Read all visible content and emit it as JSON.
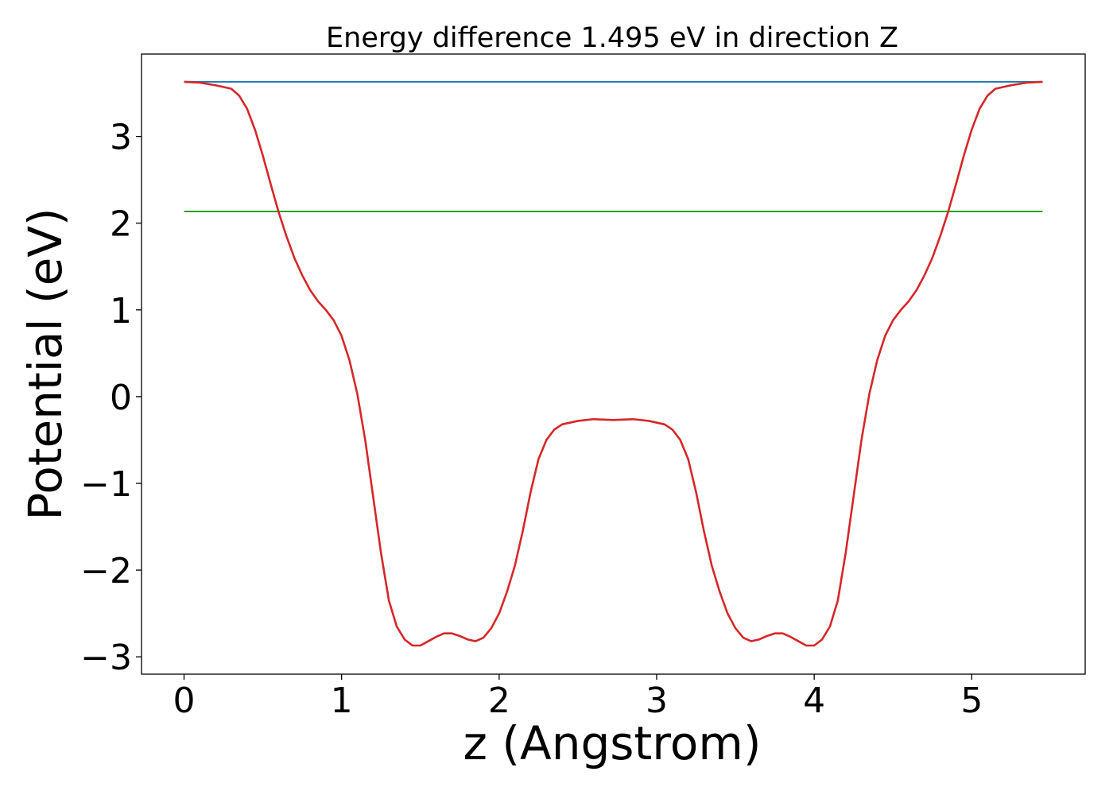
{
  "chart_data": {
    "type": "line",
    "title": "Energy difference 1.495 eV in direction Z",
    "xlabel": "z (Angstrom)",
    "ylabel": "Potential (eV)",
    "xlim": [
      -0.27,
      5.72
    ],
    "ylim": [
      -3.2,
      3.95
    ],
    "xticks": [
      0,
      1,
      2,
      3,
      4,
      5
    ],
    "yticks": [
      -3,
      -2,
      -1,
      0,
      1,
      2,
      3
    ],
    "xtick_labels": [
      "0",
      "1",
      "2",
      "3",
      "4",
      "5"
    ],
    "ytick_labels": [
      "−3",
      "−2",
      "−1",
      "0",
      "1",
      "2",
      "3"
    ],
    "grid": false,
    "legend": "none",
    "series": [
      {
        "color": "#1f77b4",
        "x": [
          0,
          5.45
        ],
        "y": [
          3.63,
          3.63
        ]
      },
      {
        "color": "#2ca02c",
        "x": [
          0,
          5.45
        ],
        "y": [
          2.135,
          2.135
        ]
      },
      {
        "color": "#d62728",
        "x": [
          0,
          0.1,
          0.2,
          0.3,
          0.35,
          0.4,
          0.45,
          0.5,
          0.55,
          0.6,
          0.65,
          0.7,
          0.75,
          0.8,
          0.85,
          0.9,
          0.95,
          1.0,
          1.05,
          1.1,
          1.15,
          1.2,
          1.25,
          1.3,
          1.35,
          1.4,
          1.45,
          1.5,
          1.55,
          1.6,
          1.65,
          1.7,
          1.75,
          1.8,
          1.85,
          1.9,
          1.95,
          2.0,
          2.05,
          2.1,
          2.15,
          2.2,
          2.25,
          2.3,
          2.35,
          2.4,
          2.5,
          2.6,
          2.725,
          2.85,
          2.95,
          3.05,
          3.1,
          3.15,
          3.2,
          3.25,
          3.3,
          3.35,
          3.4,
          3.45,
          3.5,
          3.55,
          3.6,
          3.65,
          3.7,
          3.75,
          3.8,
          3.85,
          3.9,
          3.95,
          4.0,
          4.05,
          4.1,
          4.15,
          4.2,
          4.25,
          4.3,
          4.35,
          4.4,
          4.45,
          4.5,
          4.55,
          4.6,
          4.65,
          4.7,
          4.75,
          4.8,
          4.85,
          4.9,
          4.95,
          5.0,
          5.05,
          5.1,
          5.15,
          5.25,
          5.35,
          5.45
        ],
        "y": [
          3.63,
          3.62,
          3.59,
          3.55,
          3.47,
          3.32,
          3.08,
          2.78,
          2.45,
          2.13,
          1.85,
          1.6,
          1.4,
          1.23,
          1.1,
          1.0,
          0.88,
          0.7,
          0.42,
          0.03,
          -0.5,
          -1.15,
          -1.8,
          -2.35,
          -2.65,
          -2.8,
          -2.87,
          -2.87,
          -2.82,
          -2.77,
          -2.73,
          -2.73,
          -2.76,
          -2.8,
          -2.82,
          -2.78,
          -2.67,
          -2.5,
          -2.25,
          -1.95,
          -1.55,
          -1.1,
          -0.72,
          -0.5,
          -0.38,
          -0.32,
          -0.28,
          -0.26,
          -0.27,
          -0.26,
          -0.28,
          -0.32,
          -0.38,
          -0.5,
          -0.72,
          -1.1,
          -1.55,
          -1.95,
          -2.25,
          -2.5,
          -2.67,
          -2.78,
          -2.82,
          -2.8,
          -2.76,
          -2.73,
          -2.73,
          -2.77,
          -2.82,
          -2.87,
          -2.87,
          -2.8,
          -2.65,
          -2.35,
          -1.8,
          -1.15,
          -0.5,
          0.03,
          0.42,
          0.7,
          0.88,
          1.0,
          1.1,
          1.23,
          1.4,
          1.6,
          1.85,
          2.13,
          2.45,
          2.78,
          3.08,
          3.32,
          3.47,
          3.55,
          3.59,
          3.62,
          3.63
        ]
      }
    ]
  }
}
